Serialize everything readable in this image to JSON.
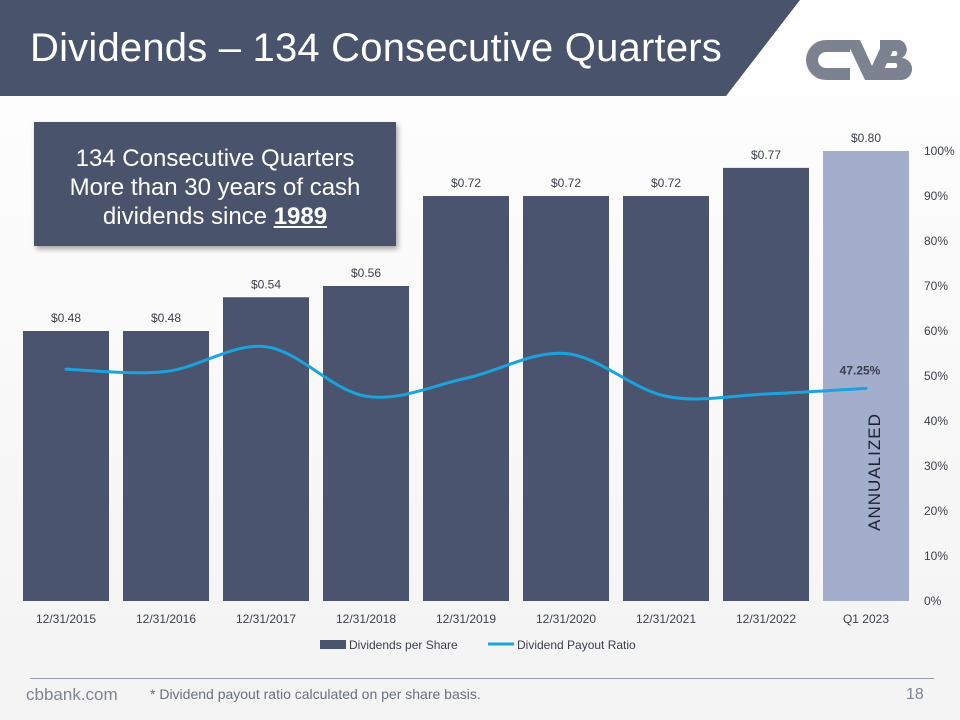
{
  "slide": {
    "title": "Dividends – 134 Consecutive Quarters",
    "callout_line1": "134 Consecutive Quarters",
    "callout_line2": "More than 30 years of cash",
    "callout_line3_prefix": "dividends since ",
    "callout_year": "1989",
    "logo_name": "cvb-logo",
    "footer_site": "cbbank.com",
    "footer_note": "* Dividend payout ratio calculated on per share basis.",
    "page_number": "18"
  },
  "colors": {
    "bar": "#4a546e",
    "bar_highlight": "#a2aecc",
    "line": "#1ba3de",
    "text": "#3b3f4a",
    "banner": "#49536c"
  },
  "chart_data": {
    "type": "bar",
    "categories": [
      "12/31/2015",
      "12/31/2016",
      "12/31/2017",
      "12/31/2018",
      "12/31/2019",
      "12/31/2020",
      "12/31/2021",
      "12/31/2022",
      "Q1 2023"
    ],
    "series": [
      {
        "name": "Dividends per Share",
        "type": "bar",
        "axis": "left",
        "values": [
          0.48,
          0.48,
          0.54,
          0.56,
          0.72,
          0.72,
          0.72,
          0.77,
          0.8
        ],
        "labels": [
          "$0.48",
          "$0.48",
          "$0.54",
          "$0.56",
          "$0.72",
          "$0.72",
          "$0.72",
          "$0.77",
          "$0.80"
        ]
      },
      {
        "name": "Dividend Payout Ratio",
        "type": "line",
        "axis": "right",
        "values": [
          51.5,
          51.0,
          56.5,
          45.5,
          49.5,
          55.0,
          45.5,
          46.0,
          47.25
        ],
        "last_label": "47.25%"
      }
    ],
    "highlight_index": 8,
    "highlight_label": "ANNUALIZED",
    "left_axis": {
      "ylim": [
        0,
        0.8
      ],
      "visible": false
    },
    "right_axis": {
      "ylim": [
        0,
        100
      ],
      "ticks": [
        "0%",
        "10%",
        "20%",
        "30%",
        "40%",
        "50%",
        "60%",
        "70%",
        "80%",
        "90%",
        "100%"
      ]
    },
    "legend_position": "bottom"
  }
}
